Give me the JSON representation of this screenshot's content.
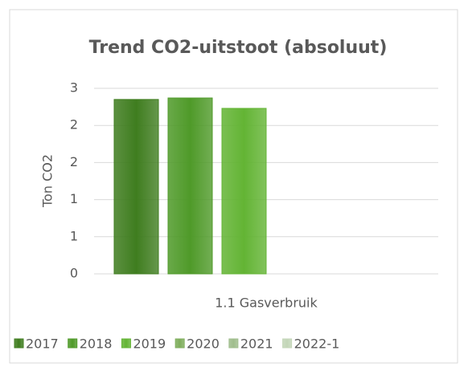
{
  "chart_data": {
    "type": "bar",
    "title": "Trend CO2-uitstoot (absoluut)",
    "y_label": "Ton CO2",
    "categories": [
      "1.1 Gasverbruik"
    ],
    "series": [
      {
        "name": "2017",
        "color": "#3f7d1f",
        "values": [
          2.35
        ]
      },
      {
        "name": "2018",
        "color": "#4f9a29",
        "values": [
          2.37
        ]
      },
      {
        "name": "2019",
        "color": "#63b434",
        "values": [
          2.23
        ]
      },
      {
        "name": "2020",
        "color": "#7fae5c",
        "values": [
          null
        ]
      },
      {
        "name": "2021",
        "color": "#9fbd8c",
        "values": [
          null
        ]
      },
      {
        "name": "2022-1",
        "color": "#c3d6b8",
        "values": [
          null
        ]
      }
    ],
    "ylim": [
      0,
      2.5
    ],
    "yticks": [
      0,
      {
        "value": 0.5,
        "label": "1"
      },
      1,
      {
        "value": 1.5,
        "label": "2"
      },
      2,
      {
        "value": 2.5,
        "label": "3"
      }
    ],
    "grid": true,
    "legend": "bottom"
  }
}
